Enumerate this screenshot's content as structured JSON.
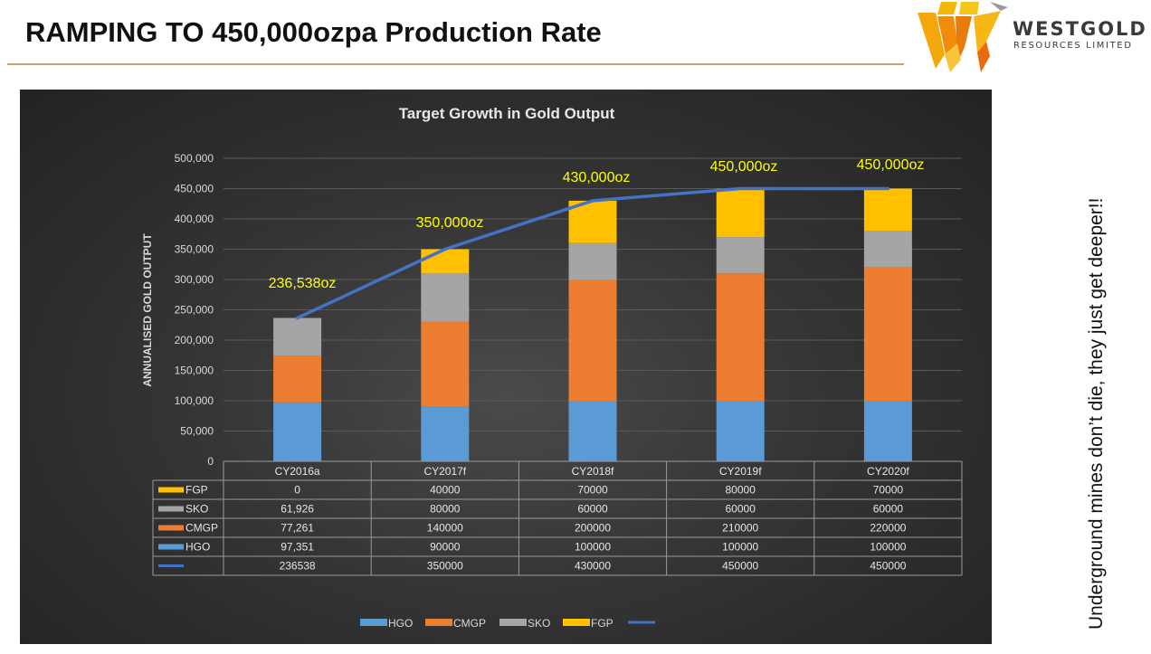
{
  "slide": {
    "title": "RAMPING TO 450,000ozpa Production Rate",
    "side_text": "Underground mines don’t die, they just get deeper!!"
  },
  "logo": {
    "name_line1": "WESTGOLD",
    "name_line2": "RESOURCES LIMITED",
    "colors": [
      "#f2b807",
      "#f08c0b",
      "#e86c0d",
      "#9a9a9a"
    ]
  },
  "chart_data": {
    "type": "bar",
    "stacked": true,
    "title": "Target Growth in Gold Output",
    "ylabel": "ANNUALISED GOLD OUTPUT",
    "xlabel": "",
    "ylim": [
      0,
      500000
    ],
    "yticks": [
      "0",
      "50,000",
      "100,000",
      "150,000",
      "200,000",
      "250,000",
      "300,000",
      "350,000",
      "400,000",
      "450,000",
      "500,000"
    ],
    "categories": [
      "CY2016a",
      "CY2017f",
      "CY2018f",
      "CY2019f",
      "CY2020f"
    ],
    "series": [
      {
        "name": "HGO",
        "values": [
          97351,
          90000,
          100000,
          100000,
          100000
        ],
        "color": "#5b9bd5"
      },
      {
        "name": "CMGP",
        "values": [
          77261,
          140000,
          200000,
          210000,
          220000
        ],
        "color": "#ed7d31"
      },
      {
        "name": "SKO",
        "values": [
          61926,
          80000,
          60000,
          60000,
          60000
        ],
        "color": "#a5a5a5"
      },
      {
        "name": "FGP",
        "values": [
          0,
          40000,
          70000,
          80000,
          70000
        ],
        "color": "#ffc000"
      }
    ],
    "total_line": {
      "name": "",
      "values": [
        236538,
        350000,
        430000,
        450000,
        450000
      ],
      "color": "#4472c4"
    },
    "annotations": [
      "236,538oz",
      "350,000oz",
      "430,000oz",
      "450,000oz",
      "450,000oz"
    ],
    "annotation_color": "#ffff00",
    "data_table": {
      "rows": [
        {
          "series": "FGP",
          "values": [
            "0",
            "40000",
            "70000",
            "80000",
            "70000"
          ]
        },
        {
          "series": "SKO",
          "values": [
            "61,926",
            "80000",
            "60000",
            "60000",
            "60000"
          ]
        },
        {
          "series": "CMGP",
          "values": [
            "77,261",
            "140000",
            "200000",
            "210000",
            "220000"
          ]
        },
        {
          "series": "HGO",
          "values": [
            "97,351",
            "90000",
            "100000",
            "100000",
            "100000"
          ]
        },
        {
          "series": "",
          "values": [
            "236538",
            "350000",
            "430000",
            "450000",
            "450000"
          ]
        }
      ]
    },
    "legend": {
      "position": "bottom",
      "entries": [
        "HGO",
        "CMGP",
        "SKO",
        "FGP",
        ""
      ]
    },
    "grid": true
  }
}
